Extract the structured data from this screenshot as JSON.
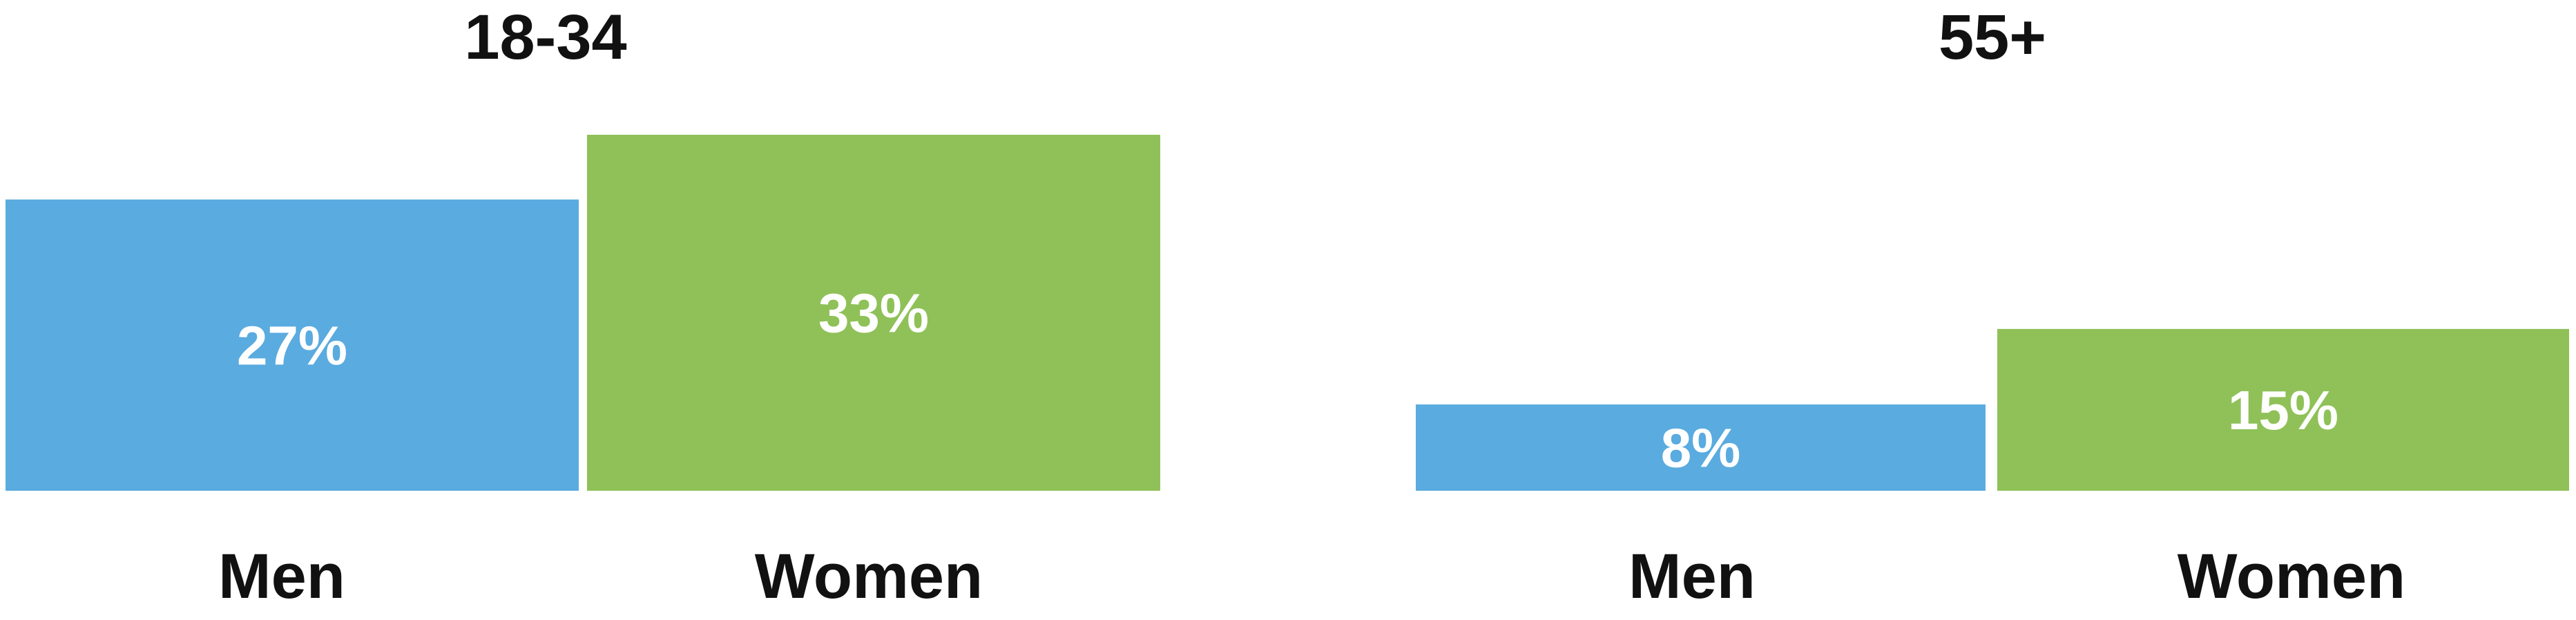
{
  "chart_data": [
    {
      "type": "bar",
      "title": "18-34",
      "xlabel": "",
      "ylabel": "",
      "ylim": [
        0,
        33
      ],
      "grid": false,
      "categories": [
        "Men",
        "Women"
      ],
      "values": [
        27,
        33
      ],
      "value_labels": [
        "27%",
        "33%"
      ],
      "colors": [
        "#5aabdf",
        "#8fc158"
      ]
    },
    {
      "type": "bar",
      "title": "55+",
      "xlabel": "",
      "ylabel": "",
      "ylim": [
        0,
        33
      ],
      "grid": false,
      "categories": [
        "Men",
        "Women"
      ],
      "values": [
        8,
        15
      ],
      "value_labels": [
        "8%",
        "15%"
      ],
      "colors": [
        "#5aabdf",
        "#8fc158"
      ]
    }
  ]
}
